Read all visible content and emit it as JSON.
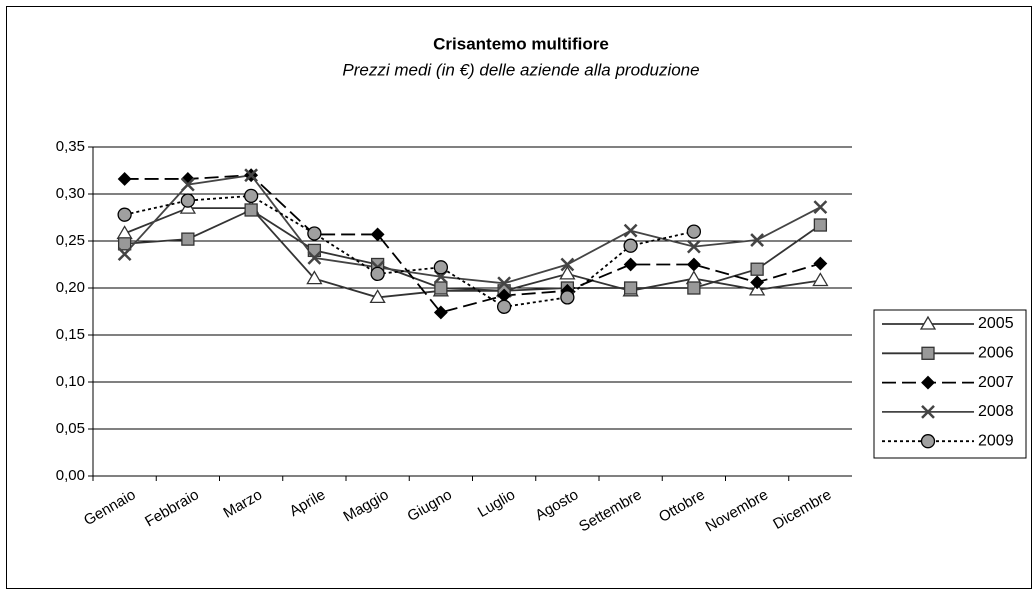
{
  "chart_data": {
    "type": "line",
    "title": "Crisantemo multifiore",
    "subtitle": "Prezzi medi (in €) delle aziende alla produzione",
    "categories": [
      "Gennaio",
      "Febbraio",
      "Marzo",
      "Aprile",
      "Maggio",
      "Giugno",
      "Luglio",
      "Agosto",
      "Settembre",
      "Ottobre",
      "Novembre",
      "Dicembre"
    ],
    "series": [
      {
        "name": "2005",
        "color": "#333333",
        "marker": "triangle",
        "marker_fill": "#ffffff",
        "dash": "solid",
        "values": [
          0.258,
          0.285,
          0.285,
          0.21,
          0.19,
          0.197,
          0.197,
          0.215,
          0.197,
          0.21,
          0.198,
          0.208
        ]
      },
      {
        "name": "2006",
        "color": "#333333",
        "marker": "square",
        "marker_fill": "#999999",
        "dash": "solid",
        "values": [
          0.247,
          0.252,
          0.283,
          0.24,
          0.225,
          0.2,
          0.197,
          0.2,
          0.2,
          0.2,
          0.22,
          0.267
        ]
      },
      {
        "name": "2007",
        "color": "#000000",
        "marker": "diamond",
        "marker_fill": "#000000",
        "dash": "dashed",
        "values": [
          0.316,
          0.316,
          0.32,
          0.257,
          0.257,
          0.174,
          0.192,
          0.197,
          0.225,
          0.225,
          0.206,
          0.226
        ]
      },
      {
        "name": "2008",
        "color": "#444444",
        "marker": "cross",
        "marker_fill": "#888888",
        "dash": "solid",
        "values": [
          0.236,
          0.31,
          0.32,
          0.232,
          0.222,
          0.212,
          0.205,
          0.225,
          0.261,
          0.244,
          0.251,
          0.286
        ]
      },
      {
        "name": "2009",
        "color": "#000000",
        "marker": "circle",
        "marker_fill": "#a0a0a0",
        "dash": "dotted",
        "values": [
          0.278,
          0.293,
          0.298,
          0.258,
          0.215,
          0.222,
          0.18,
          0.19,
          0.245,
          0.26,
          null,
          null
        ]
      }
    ],
    "ylim": [
      0,
      0.35
    ],
    "yticks": [
      {
        "value": 0,
        "label": "0,00"
      },
      {
        "value": 0.05,
        "label": "0,05"
      },
      {
        "value": 0.1,
        "label": "0,10"
      },
      {
        "value": 0.15,
        "label": "0,15"
      },
      {
        "value": 0.2,
        "label": "0,20"
      },
      {
        "value": 0.25,
        "label": "0,25"
      },
      {
        "value": 0.3,
        "label": "0,30"
      },
      {
        "value": 0.35,
        "label": "0,35"
      }
    ],
    "grid": true,
    "legend": "right"
  }
}
